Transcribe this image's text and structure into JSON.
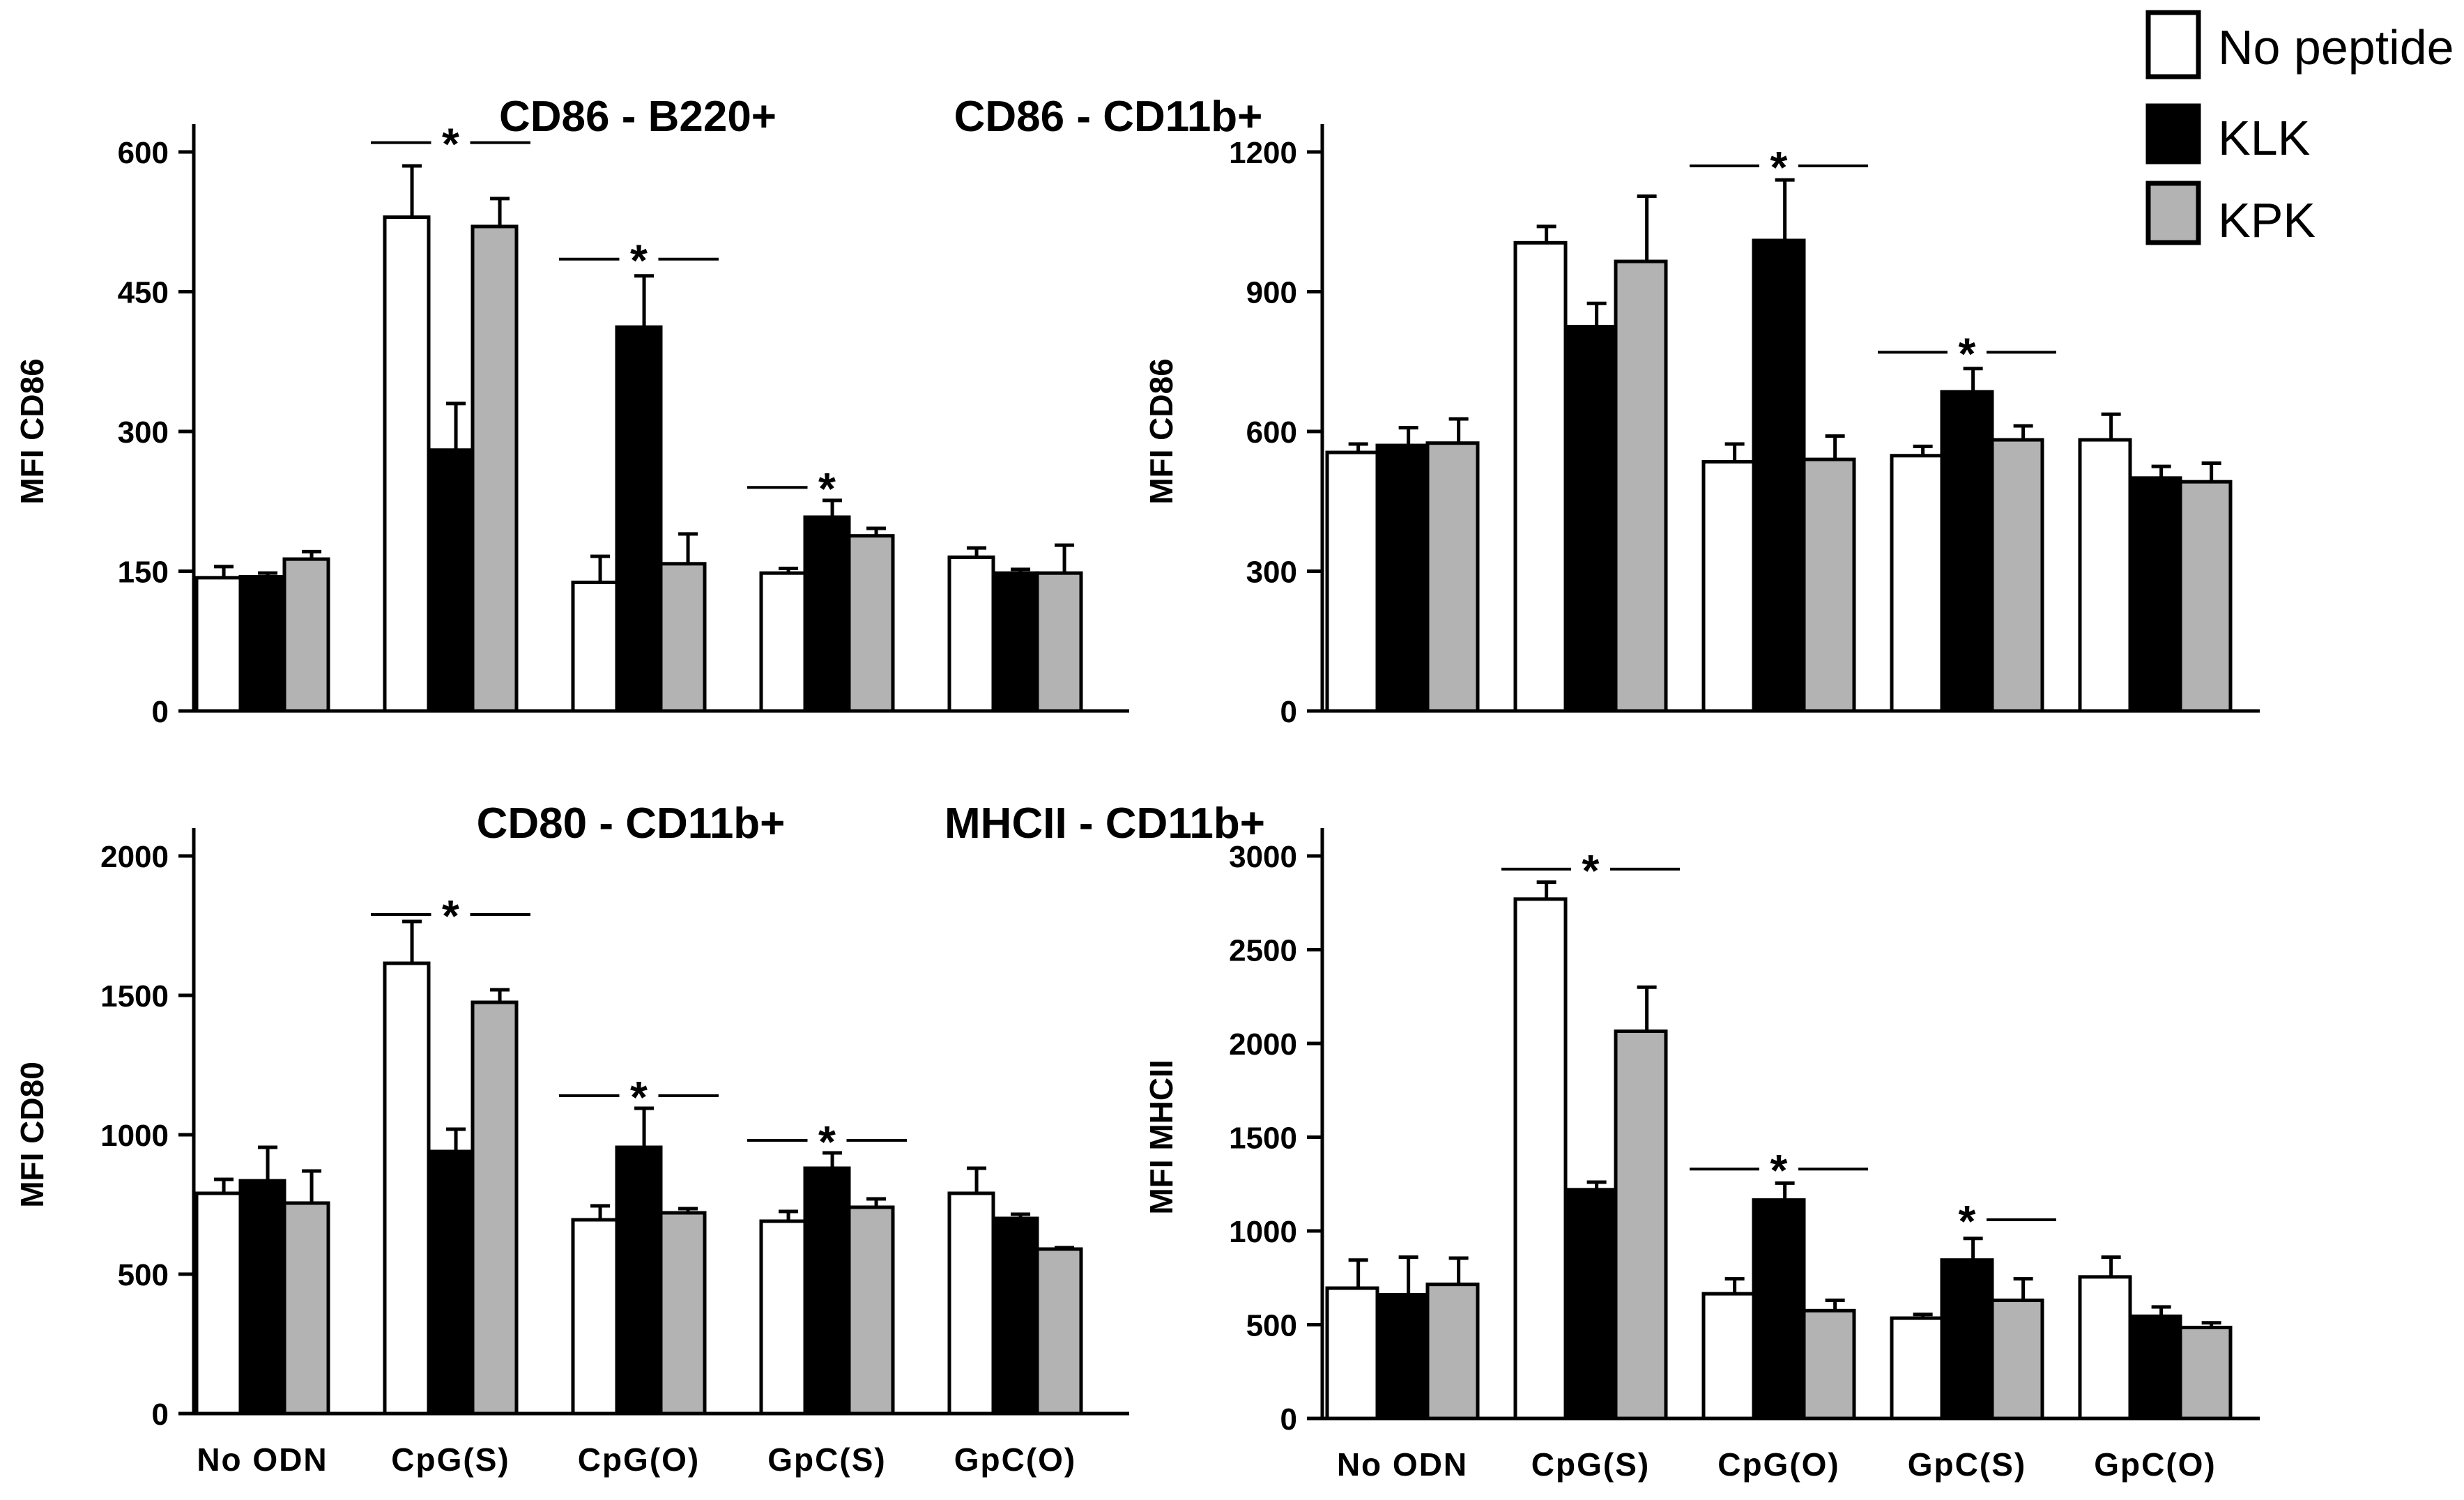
{
  "legend": [
    {
      "label": "No peptide",
      "color": "#ffffff"
    },
    {
      "label": "KLK",
      "color": "#000000"
    },
    {
      "label": "KPK",
      "color": "#b3b3b3"
    }
  ],
  "chart_data": [
    {
      "type": "bar",
      "title": "CD86 - B220+",
      "ylabel": "MFI CD86",
      "xlabel": "",
      "ylim": [
        0,
        600
      ],
      "yticks": [
        0,
        150,
        300,
        450,
        600
      ],
      "categories": [
        "No ODN",
        "CpG(S)",
        "CpG(O)",
        "GpC(S)",
        "GpC(O)"
      ],
      "show_category_labels": false,
      "series": [
        {
          "name": "No peptide",
          "values": [
            143,
            530,
            138,
            148,
            165
          ],
          "errors": [
            12,
            55,
            28,
            5,
            10
          ]
        },
        {
          "name": "KLK",
          "values": [
            144,
            280,
            412,
            208,
            148
          ],
          "errors": [
            4,
            50,
            55,
            18,
            4
          ]
        },
        {
          "name": "KPK",
          "values": [
            163,
            520,
            158,
            188,
            148
          ],
          "errors": [
            8,
            30,
            32,
            8,
            30
          ]
        }
      ],
      "significance": [
        {
          "category": "CpG(S)",
          "label": "*",
          "y": 610,
          "left_line": true,
          "right_line": true
        },
        {
          "category": "CpG(O)",
          "label": "*",
          "y": 485,
          "left_line": true,
          "right_line": true
        },
        {
          "category": "GpC(S)",
          "label": "*",
          "y": 240,
          "left_line": true,
          "right_line": false
        }
      ]
    },
    {
      "type": "bar",
      "title": "CD86 - CD11b+",
      "ylabel": "MFI CD86",
      "xlabel": "",
      "ylim": [
        0,
        1200
      ],
      "yticks": [
        0,
        300,
        600,
        900,
        1200
      ],
      "categories": [
        "No ODN",
        "CpG(S)",
        "CpG(O)",
        "GpC(S)",
        "GpC(O)"
      ],
      "show_category_labels": false,
      "series": [
        {
          "name": "No peptide",
          "values": [
            555,
            1005,
            535,
            548,
            582
          ],
          "errors": [
            18,
            35,
            38,
            20,
            55
          ]
        },
        {
          "name": "KLK",
          "values": [
            570,
            825,
            1010,
            685,
            500
          ],
          "errors": [
            38,
            50,
            130,
            50,
            25
          ]
        },
        {
          "name": "KPK",
          "values": [
            575,
            965,
            540,
            582,
            492
          ],
          "errors": [
            52,
            140,
            50,
            30,
            40
          ]
        }
      ],
      "significance": [
        {
          "category": "CpG(O)",
          "label": "*",
          "y": 1170,
          "left_line": true,
          "right_line": true
        },
        {
          "category": "GpC(S)",
          "label": "*",
          "y": 770,
          "left_line": true,
          "right_line": true
        }
      ]
    },
    {
      "type": "bar",
      "title": "CD80 - CD11b+",
      "ylabel": "MFI CD80",
      "xlabel": "",
      "ylim": [
        0,
        2000
      ],
      "yticks": [
        0,
        500,
        1000,
        1500,
        2000
      ],
      "categories": [
        "No ODN",
        "CpG(S)",
        "CpG(O)",
        "GpC(S)",
        "GpC(O)"
      ],
      "show_category_labels": true,
      "series": [
        {
          "name": "No peptide",
          "values": [
            790,
            1615,
            695,
            690,
            790
          ],
          "errors": [
            50,
            150,
            50,
            35,
            90
          ]
        },
        {
          "name": "KLK",
          "values": [
            835,
            940,
            955,
            880,
            700
          ],
          "errors": [
            120,
            80,
            140,
            55,
            15
          ]
        },
        {
          "name": "KPK",
          "values": [
            755,
            1475,
            720,
            740,
            590
          ],
          "errors": [
            115,
            45,
            15,
            30,
            5
          ]
        }
      ],
      "significance": [
        {
          "category": "CpG(S)",
          "label": "*",
          "y": 1790,
          "left_line": true,
          "right_line": true
        },
        {
          "category": "CpG(O)",
          "label": "*",
          "y": 1140,
          "left_line": true,
          "right_line": true
        },
        {
          "category": "GpC(S)",
          "label": "*",
          "y": 980,
          "left_line": true,
          "right_line": true
        }
      ]
    },
    {
      "type": "bar",
      "title": "MHCII - CD11b+",
      "ylabel": "MFI MHCII",
      "xlabel": "",
      "ylim": [
        0,
        3000
      ],
      "yticks": [
        0,
        500,
        1000,
        1500,
        2000,
        2500,
        3000
      ],
      "categories": [
        "No ODN",
        "CpG(S)",
        "CpG(O)",
        "GpC(S)",
        "GpC(O)"
      ],
      "show_category_labels": true,
      "series": [
        {
          "name": "No peptide",
          "values": [
            695,
            2770,
            665,
            535,
            755
          ],
          "errors": [
            150,
            90,
            80,
            20,
            105
          ]
        },
        {
          "name": "KLK",
          "values": [
            660,
            1220,
            1165,
            845,
            545
          ],
          "errors": [
            200,
            40,
            90,
            115,
            50
          ]
        },
        {
          "name": "KPK",
          "values": [
            715,
            2065,
            575,
            630,
            485
          ],
          "errors": [
            140,
            235,
            55,
            115,
            25
          ]
        }
      ],
      "significance": [
        {
          "category": "CpG(S)",
          "label": "*",
          "y": 2930,
          "left_line": true,
          "right_line": true
        },
        {
          "category": "CpG(O)",
          "label": "*",
          "y": 1330,
          "left_line": true,
          "right_line": true
        },
        {
          "category": "GpC(S)",
          "label": "*",
          "y": 1060,
          "left_line": false,
          "right_line": true
        }
      ]
    }
  ]
}
